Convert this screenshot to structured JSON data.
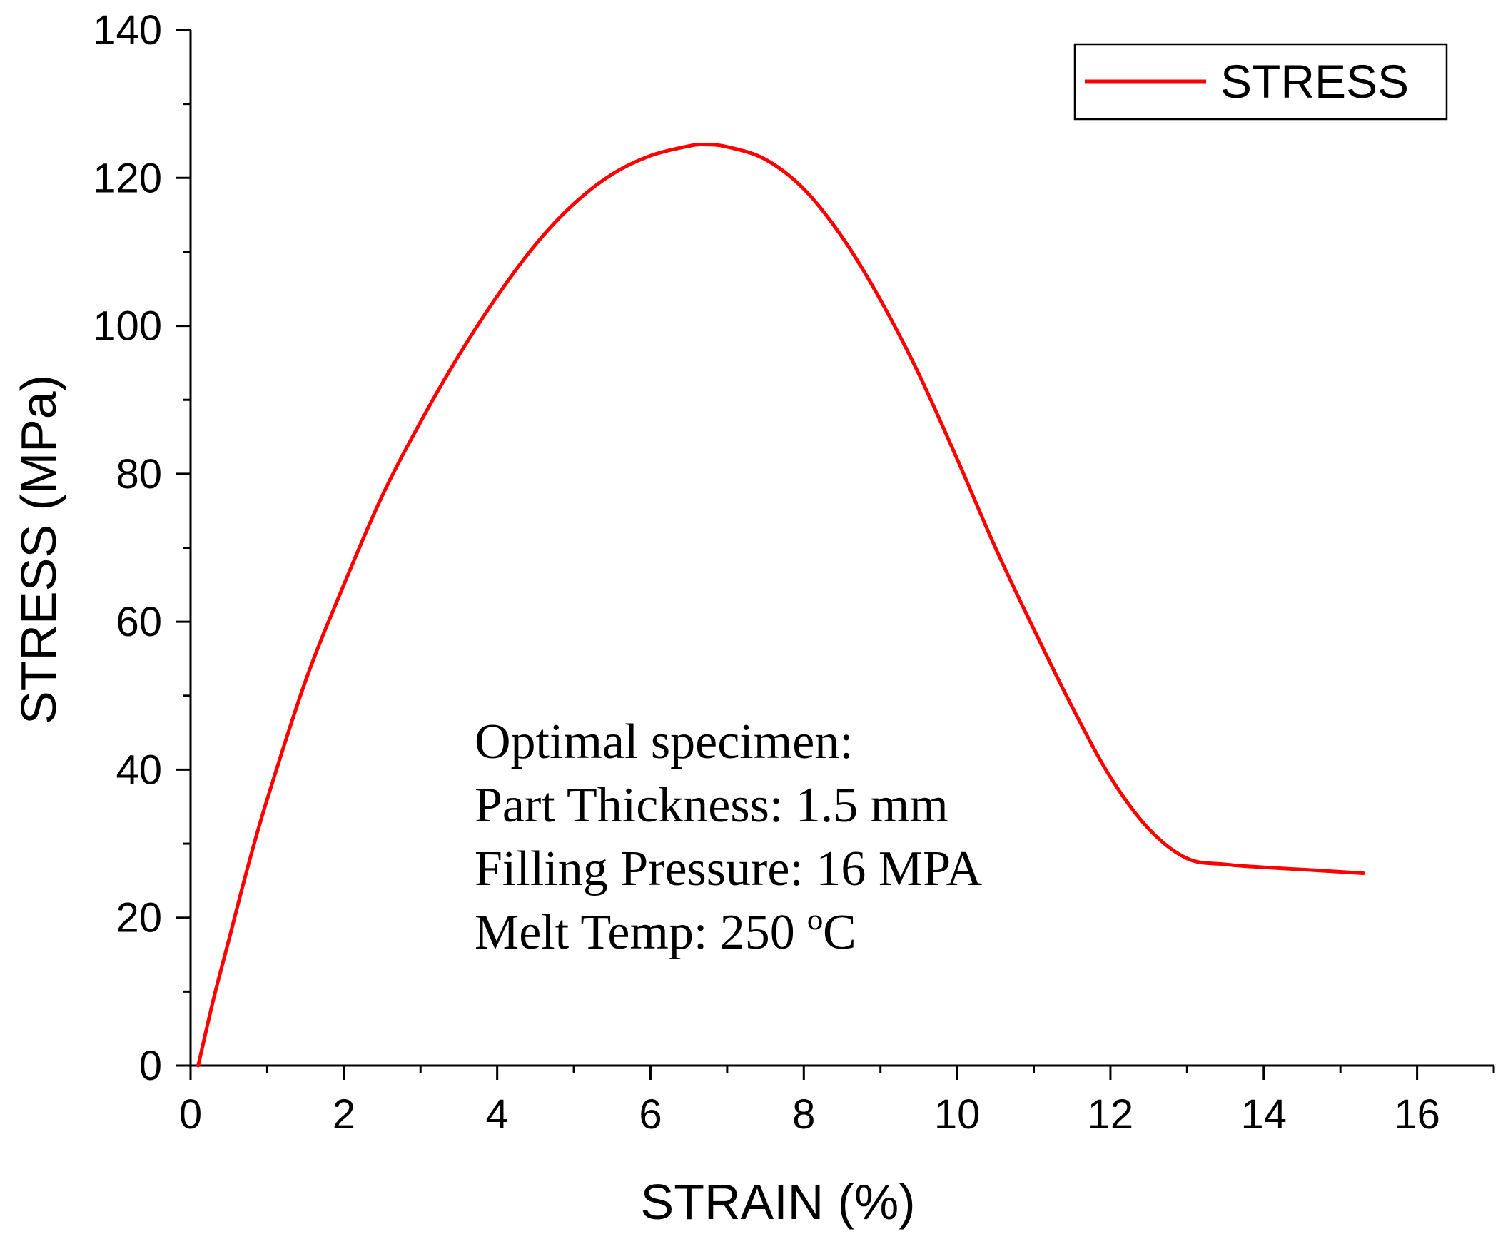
{
  "chart_data": {
    "type": "line",
    "title": "",
    "xlabel": "STRAIN (%)",
    "ylabel": "STRESS (MPa)",
    "xlim": [
      0,
      17
    ],
    "ylim": [
      0,
      140
    ],
    "x_ticks": [
      0,
      2,
      4,
      6,
      8,
      10,
      12,
      14,
      16
    ],
    "y_ticks": [
      0,
      20,
      40,
      60,
      80,
      100,
      120,
      140
    ],
    "x_tick_labels": [
      "0",
      "2",
      "4",
      "6",
      "8",
      "10",
      "12",
      "14",
      "16"
    ],
    "y_tick_labels": [
      "0",
      "20",
      "40",
      "60",
      "80",
      "100",
      "120",
      "140"
    ],
    "grid": false,
    "legend_position": "top-right",
    "series": [
      {
        "name": "STRESS",
        "color": "#ff0000",
        "x": [
          0.1,
          0.3,
          0.5,
          0.75,
          1.0,
          1.5,
          2.0,
          2.5,
          3.0,
          3.5,
          4.0,
          4.5,
          5.0,
          5.5,
          6.0,
          6.5,
          6.7,
          7.0,
          7.5,
          8.0,
          8.5,
          9.0,
          9.5,
          10.0,
          10.5,
          11.0,
          11.5,
          12.0,
          12.5,
          13.0,
          13.5,
          14.0,
          14.5,
          15.0,
          15.3
        ],
        "values": [
          0,
          9,
          17,
          27,
          36,
          52,
          65,
          77,
          87,
          96,
          104,
          111,
          116.5,
          120.5,
          123,
          124.3,
          124.5,
          124.2,
          122.5,
          118.5,
          112,
          103.5,
          93.5,
          82,
          70,
          59,
          48.5,
          39,
          32,
          28,
          27.2,
          26.8,
          26.5,
          26.2,
          26.0
        ]
      }
    ],
    "annotation": [
      "Optimal specimen:",
      "Part Thickness: 1.5 mm",
      "Filling Pressure: 16 MPA",
      "Melt Temp: 250 ºC"
    ]
  }
}
